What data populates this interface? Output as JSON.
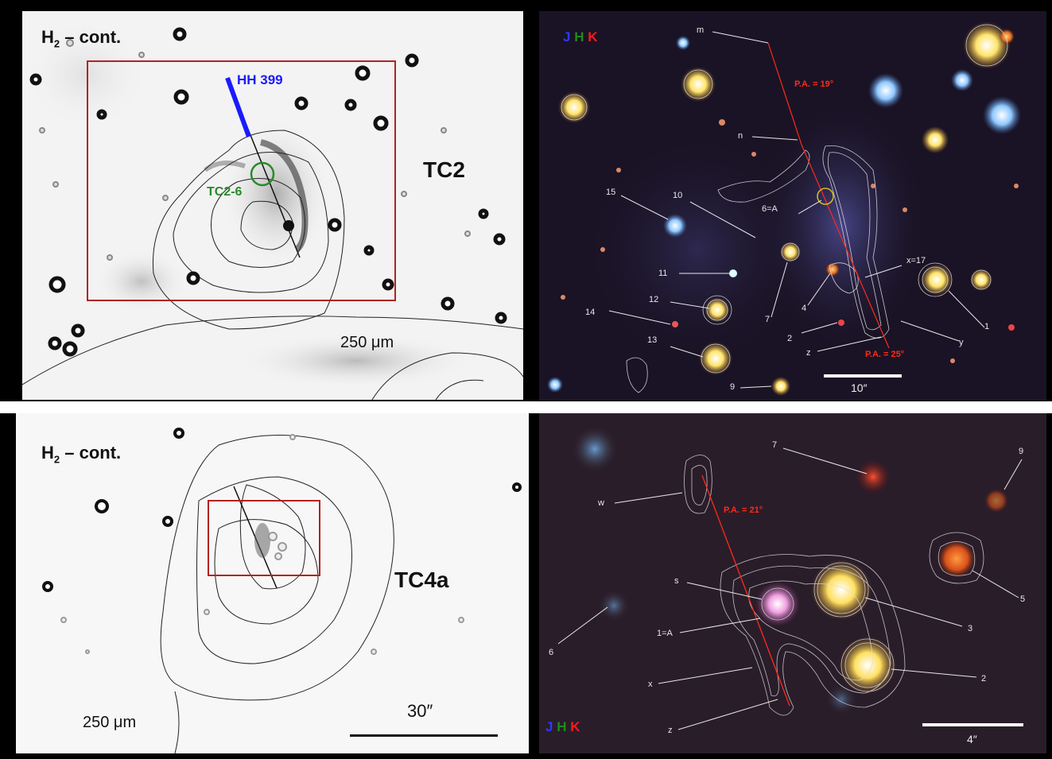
{
  "top_left": {
    "filter_label": "H",
    "filter_sub": "2",
    "filter_rest": " – cont.",
    "region_name": "TC2",
    "outflow_label": "HH 399",
    "source_label": "TC2-6",
    "contour_label": "250 μm",
    "colors": {
      "box": "#b22222",
      "outflow": "#1a1aff",
      "source": "#2a8a2a"
    }
  },
  "top_right": {
    "jhk": [
      "J",
      "H",
      "K"
    ],
    "jhk_colors": [
      "#2a3cff",
      "#1e8a1e",
      "#ff1a1a"
    ],
    "pa_top": "P.A. = 19°",
    "pa_bottom": "P.A. = 25°",
    "labels": [
      "m",
      "n",
      "15",
      "10",
      "6=A",
      "x=17",
      "11",
      "7",
      "4",
      "12",
      "14",
      "1",
      "2",
      "13",
      "z",
      "y",
      "9"
    ],
    "scale_label": "10″"
  },
  "bottom_left": {
    "filter_label": "H",
    "filter_sub": "2",
    "filter_rest": " – cont.",
    "region_name": "TC4a",
    "contour_label": "250 μm",
    "scale_label": "30″"
  },
  "bottom_right": {
    "jhk": [
      "J",
      "H",
      "K"
    ],
    "jhk_colors": [
      "#2a3cff",
      "#1e8a1e",
      "#ff1a1a"
    ],
    "pa_label": "P.A. = 21°",
    "labels": [
      "7",
      "9",
      "w",
      "s",
      "5",
      "1=A",
      "3",
      "6",
      "x",
      "2",
      "z"
    ],
    "scale_label": "4″"
  }
}
